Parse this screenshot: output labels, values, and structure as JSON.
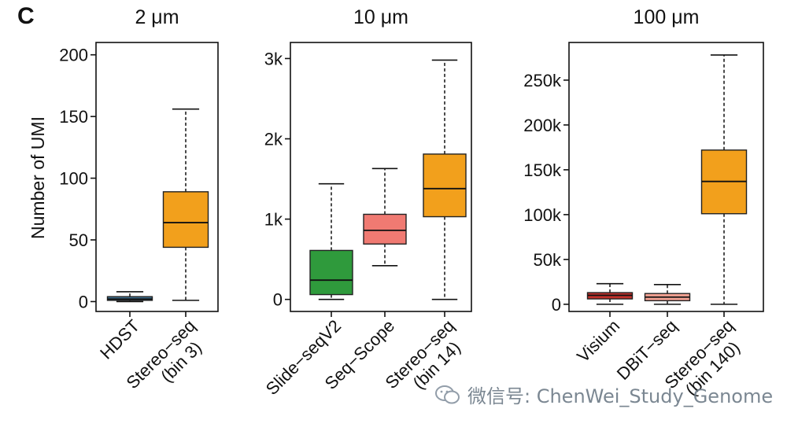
{
  "panel_label": "C",
  "watermark": {
    "text": "微信号: ChenWei_Study_Genome",
    "icon": "wechat-icon"
  },
  "y_axis_label": "Number of UMI",
  "chart_data": [
    {
      "type": "box",
      "title": "2 μm",
      "ylabel": "Number of UMI",
      "ylim": [
        -8,
        210
      ],
      "yticks": [
        0,
        50,
        100,
        150,
        200
      ],
      "ytick_labels": [
        "0",
        "50",
        "100",
        "150",
        "200"
      ],
      "categories": [
        "HDST",
        "Stereo−seq (bin 3)"
      ],
      "xtick_labels": [
        [
          "HDST"
        ],
        [
          "Stereo−seq",
          "(bin 3)"
        ]
      ],
      "series": [
        {
          "category": "HDST",
          "color": "#3d6f8f",
          "whisker_low": 0,
          "q1": 1,
          "median": 2,
          "q3": 4,
          "whisker_high": 8
        },
        {
          "category": "Stereo−seq (bin 3)",
          "color": "#f2a01c",
          "whisker_low": 1,
          "q1": 44,
          "median": 64,
          "q3": 89,
          "whisker_high": 156
        }
      ]
    },
    {
      "type": "box",
      "title": "10 μm",
      "ylabel": "",
      "ylim": [
        -150,
        3200
      ],
      "yticks": [
        0,
        1000,
        2000,
        3000
      ],
      "ytick_labels": [
        "0",
        "1k",
        "2k",
        "3k"
      ],
      "categories": [
        "Slide−seqV2",
        "Seq−Scope",
        "Stereo−seq (bin 14)"
      ],
      "xtick_labels": [
        [
          "Slide−seqV2"
        ],
        [
          "Seq−Scope"
        ],
        [
          "Stereo−seq",
          "(bin 14)"
        ]
      ],
      "series": [
        {
          "category": "Slide−seqV2",
          "color": "#2f9a3c",
          "whisker_low": 0,
          "q1": 60,
          "median": 240,
          "q3": 610,
          "whisker_high": 1440
        },
        {
          "category": "Seq−Scope",
          "color": "#f07a72",
          "whisker_low": 420,
          "q1": 690,
          "median": 860,
          "q3": 1060,
          "whisker_high": 1630
        },
        {
          "category": "Stereo−seq (bin 14)",
          "color": "#f2a01c",
          "whisker_low": 0,
          "q1": 1030,
          "median": 1380,
          "q3": 1810,
          "whisker_high": 2980
        }
      ]
    },
    {
      "type": "box",
      "title": "100 μm",
      "ylabel": "",
      "ylim": [
        -8000,
        292000
      ],
      "yticks": [
        0,
        50000,
        100000,
        150000,
        200000,
        250000
      ],
      "ytick_labels": [
        "0",
        "50k",
        "100k",
        "150k",
        "200k",
        "250k"
      ],
      "categories": [
        "Visium",
        "DBiT−seq",
        "Stereo−seq (bin 140)"
      ],
      "xtick_labels": [
        [
          "Visium"
        ],
        [
          "DBiT−seq"
        ],
        [
          "Stereo−seq",
          "(bin 140)"
        ]
      ],
      "series": [
        {
          "category": "Visium",
          "color": "#c0302a",
          "whisker_low": 0,
          "q1": 6000,
          "median": 10000,
          "q3": 13000,
          "whisker_high": 23000
        },
        {
          "category": "DBiT−seq",
          "color": "#f3a293",
          "whisker_low": 0,
          "q1": 4000,
          "median": 8000,
          "q3": 12000,
          "whisker_high": 22000
        },
        {
          "category": "Stereo−seq (bin 140)",
          "color": "#f2a01c",
          "whisker_low": 0,
          "q1": 101000,
          "median": 137000,
          "q3": 172000,
          "whisker_high": 278000
        }
      ]
    }
  ]
}
